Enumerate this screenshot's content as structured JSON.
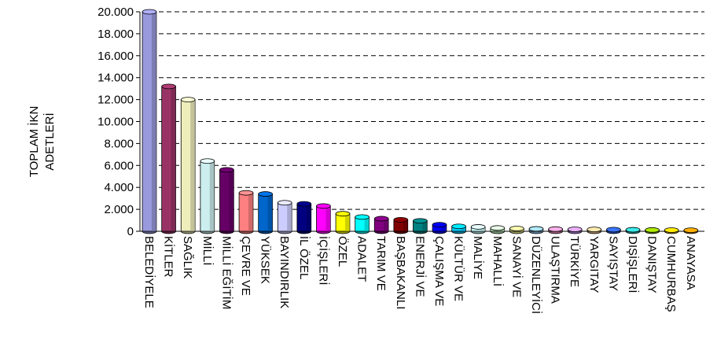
{
  "chart_data": {
    "type": "bar",
    "ylabel": [
      "TOPLAM İKN",
      "ADETLERİ"
    ],
    "categories": [
      "BELEDİYELE",
      "KİTLER",
      "SAĞLIK",
      "MİLLİ",
      "MİLLİ EĞİTİM",
      "ÇEVRE VE",
      "YÜKSEK",
      "BAYINDIRLIK",
      "İL ÖZEL",
      "İÇİŞLERİ",
      "ÖZEL",
      "ADALET",
      "TARIM VE",
      "BAŞBAKANLI",
      "ENERJİ VE",
      "ÇALIŞMA VE",
      "KÜLTÜR VE",
      "MALİYE",
      "MAHALLİ",
      "SANAYİ VE",
      "DÜZENLEYİCİ",
      "ULAŞTIRMA",
      "TÜRKİYE",
      "YARGITAY",
      "SAYIŞTAY",
      "DIŞİŞLERİ",
      "DANIŞTAY",
      "CUMHURBAŞ",
      "ANAYASA"
    ],
    "values": [
      20000,
      13200,
      12000,
      6400,
      5600,
      3500,
      3400,
      2600,
      2500,
      2300,
      1600,
      1300,
      1150,
      1050,
      950,
      600,
      450,
      400,
      300,
      250,
      220,
      200,
      180,
      170,
      150,
      140,
      120,
      110,
      100
    ],
    "colors": [
      "#9999dd",
      "#993366",
      "#eeeebb",
      "#cceeee",
      "#660066",
      "#ff8080",
      "#0066cc",
      "#ccccff",
      "#000080",
      "#ff00ff",
      "#ffff00",
      "#00ffff",
      "#800080",
      "#800000",
      "#008080",
      "#0000ff",
      "#00ccff",
      "#ccffff",
      "#ccffcc",
      "#ffff99",
      "#99ccff",
      "#ff99cc",
      "#cc99ff",
      "#ffcc99",
      "#3366ff",
      "#33cccc",
      "#99cc00",
      "#ffcc00",
      "#ff9900"
    ],
    "ylim": [
      0,
      20000
    ],
    "yticks": [
      0,
      {
        "value": 2000,
        "label": "2.000"
      },
      {
        "value": 4000,
        "label": "4.000"
      },
      {
        "value": 6000,
        "label": "6.000"
      },
      {
        "value": 8000,
        "label": "8.000"
      },
      {
        "value": 10000,
        "label": "10.000"
      },
      {
        "value": 12000,
        "label": "12.000"
      },
      {
        "value": 14000,
        "label": "14.000"
      },
      {
        "value": 16000,
        "label": "16.000"
      },
      {
        "value": 18000,
        "label": "18.000"
      },
      {
        "value": 20000,
        "label": "20.000"
      }
    ],
    "grid": true
  }
}
